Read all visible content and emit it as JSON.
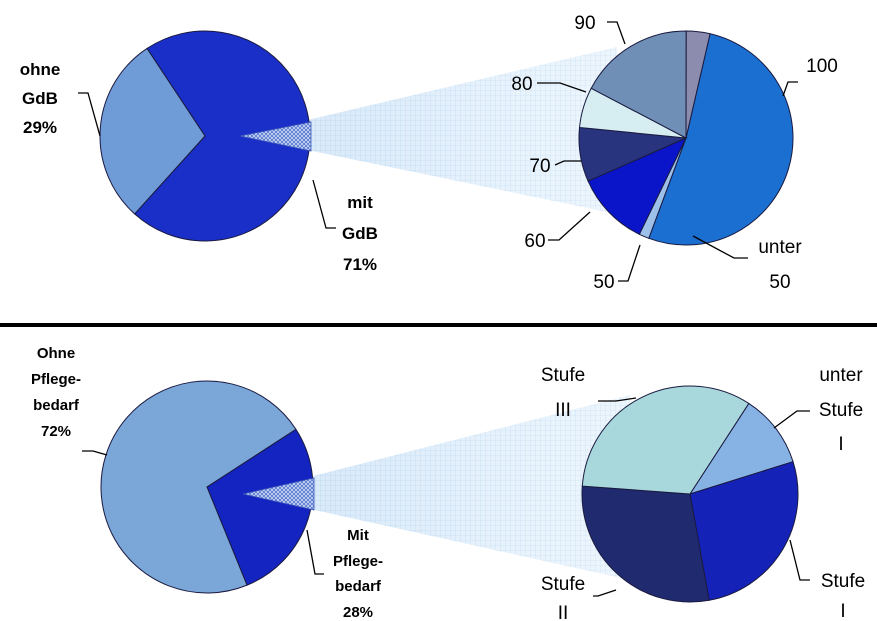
{
  "colors": {
    "ohne_gdb": "#6f9bd6",
    "mit_gdb": "#1a2fc8",
    "gdb_100": "#1b6fd0",
    "gdb_90": "#8c8cae",
    "gdb_80": "#6f8fb6",
    "gdb_70": "#d6eef2",
    "gdb_60": "#28347e",
    "gdb_50": "#0a14c8",
    "gdb_unter50": "#9cc0ea",
    "ohne_pflege": "#7ba7d8",
    "mit_pflege": "#1424c0",
    "stufe_III": "#a8d8dc",
    "unter_stufe_I": "#86b2e4",
    "stufe_I": "#1422b8",
    "stufe_II": "#202a6e",
    "separator": "#000000"
  },
  "chart_data": [
    {
      "type": "pie",
      "title": "",
      "series": [
        {
          "label": "ohne GdB 29%",
          "value": 29
        },
        {
          "label": "mit GdB 71%",
          "value": 71
        }
      ],
      "labels": {
        "ohne": [
          "ohne",
          "GdB",
          "29%"
        ],
        "mit": [
          "mit",
          "GdB",
          "71%"
        ]
      }
    },
    {
      "type": "pie",
      "title": "",
      "series": [
        {
          "label": "100",
          "value": 51
        },
        {
          "label": "unter 50",
          "value": 1.5
        },
        {
          "label": "50",
          "value": 11
        },
        {
          "label": "60",
          "value": 8
        },
        {
          "label": "70",
          "value": 6
        },
        {
          "label": "80",
          "value": 17
        },
        {
          "label": "90",
          "value": 3.5
        }
      ],
      "labels": {
        "90": [
          "90"
        ],
        "80": [
          "80"
        ],
        "70": [
          "70"
        ],
        "60": [
          "60"
        ],
        "50": [
          "50"
        ],
        "unter50": [
          "unter",
          "50"
        ],
        "100": [
          "100"
        ]
      }
    },
    {
      "type": "pie",
      "title": "",
      "series": [
        {
          "label": "Ohne Pflegebedarf 72%",
          "value": 72
        },
        {
          "label": "Mit Pflegebedarf 28%",
          "value": 28
        }
      ],
      "labels": {
        "ohne": [
          "Ohne",
          "Pflege-",
          "bedarf",
          "72%"
        ],
        "mit": [
          "Mit",
          "Pflege-",
          "bedarf",
          "28%"
        ]
      }
    },
    {
      "type": "pie",
      "title": "",
      "series": [
        {
          "label": "unter Stufe I",
          "value": 11
        },
        {
          "label": "Stufe I",
          "value": 27
        },
        {
          "label": "Stufe II",
          "value": 29
        },
        {
          "label": "Stufe III",
          "value": 33
        }
      ],
      "labels": {
        "stufeIII": [
          "Stufe",
          "III"
        ],
        "unterStufeI": [
          "unter",
          "Stufe",
          "I"
        ],
        "stufeI": [
          "Stufe",
          "I"
        ],
        "stufeII": [
          "Stufe",
          "II"
        ]
      }
    }
  ]
}
